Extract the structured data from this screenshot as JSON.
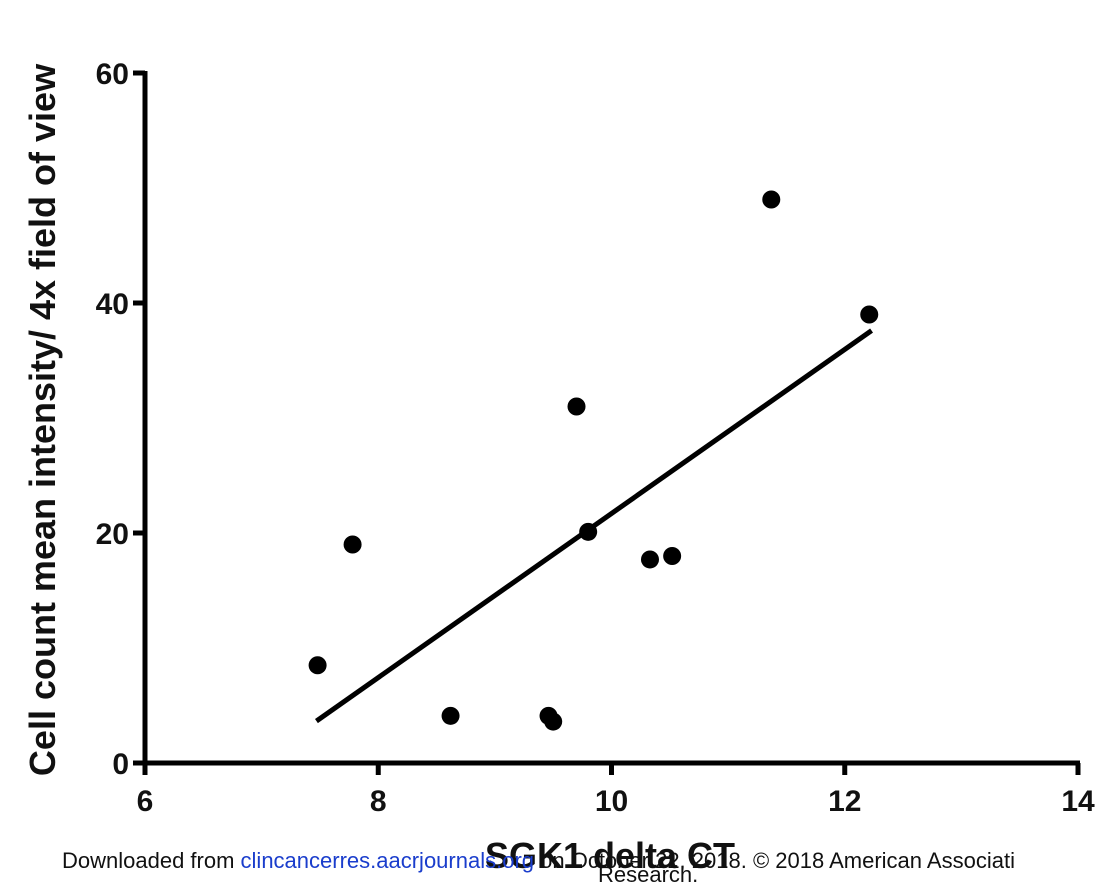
{
  "chart_data": {
    "type": "scatter",
    "x_label": "SGK1 delta CT",
    "y_label": "Cell count mean intensity/ 4x field of view",
    "x": [
      7.48,
      7.78,
      8.62,
      9.46,
      9.5,
      9.7,
      9.8,
      10.33,
      10.52,
      11.37,
      12.21
    ],
    "y": [
      8.5,
      19.0,
      4.1,
      4.1,
      3.6,
      31.0,
      20.1,
      17.7,
      18.0,
      49.0,
      39.0
    ],
    "color": "#000000",
    "fit_line": {
      "x": [
        7.47,
        12.23
      ],
      "y": [
        3.65,
        37.6
      ]
    },
    "xlim": [
      6,
      14
    ],
    "xticks": [
      6,
      8,
      10,
      12,
      14
    ],
    "ylim": [
      0,
      60
    ],
    "yticks": [
      0,
      20,
      40,
      60
    ]
  },
  "footer": {
    "prefix": "Downloaded from ",
    "link": "clincancerres.aacrjournals.org",
    "suffix": " on October 22, 2018. © 2018 American Associati",
    "line2": "Research."
  }
}
